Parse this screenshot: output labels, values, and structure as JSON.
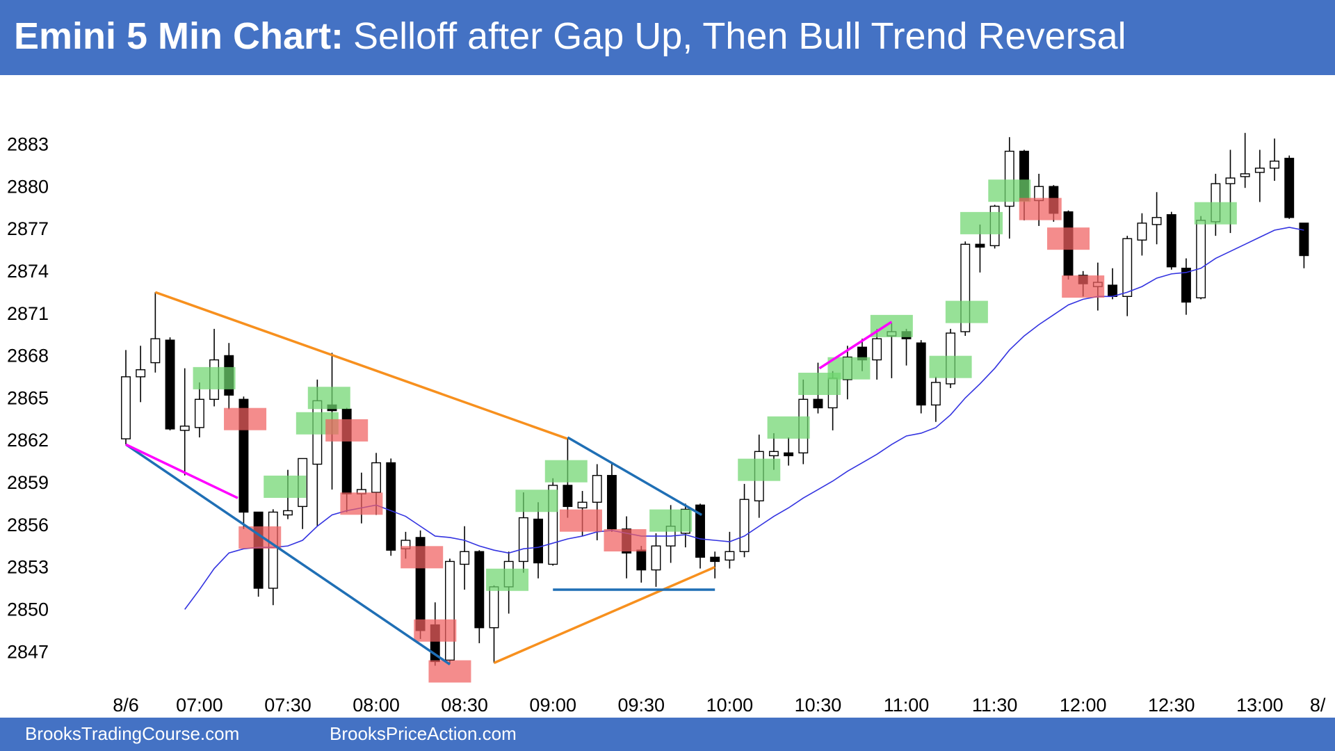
{
  "chart_data": {
    "type": "candlestick",
    "title_bold": "Emini 5 Min Chart:",
    "title": "Selloff after Gap Up, Then Bull Trend Reversal",
    "footer_left": "BrooksTradingCourse.com",
    "footer_right": "BrooksPriceAction.com",
    "categories": [
      "8/6",
      null,
      null,
      null,
      null,
      "07:00",
      null,
      null,
      null,
      null,
      null,
      "07:30",
      null,
      null,
      null,
      null,
      null,
      "08:00",
      null,
      null,
      null,
      null,
      null,
      "08:30",
      null,
      null,
      null,
      null,
      null,
      "09:00",
      null,
      null,
      null,
      null,
      null,
      "09:30",
      null,
      null,
      null,
      null,
      null,
      "10:00",
      null,
      null,
      null,
      null,
      null,
      "10:30",
      null,
      null,
      null,
      null,
      null,
      "11:00",
      null,
      null,
      null,
      null,
      null,
      "11:30",
      null,
      null,
      null,
      null,
      null,
      "12:00",
      null,
      null,
      null,
      null,
      null,
      "12:30",
      null,
      null,
      null,
      null,
      null,
      "13:00",
      null,
      null,
      null
    ],
    "next_day_label": "8/",
    "open": [
      2862.2,
      2866.6,
      2867.6,
      2869.2,
      2862.8,
      2863,
      2865,
      2868.1,
      2865,
      2857,
      2851.6,
      2856.8,
      2857.4,
      2860.4,
      2864.6,
      2864.3,
      2858.3,
      2858.4,
      2860.5,
      2854.4,
      2855.2,
      2849,
      2846.5,
      2853.3,
      2854.2,
      2848.8,
      2851.7,
      2853.5,
      2856.5,
      2853.3,
      2858.9,
      2857.3,
      2857.7,
      2859.6,
      2855.8,
      2854.3,
      2852.9,
      2854.6,
      2855.5,
      2857.5,
      2853.8,
      2853.6,
      2854.2,
      2857.8,
      2861,
      2861.2,
      2861.2,
      2865,
      2864.4,
      2866.4,
      2868.7,
      2867.8,
      2869.5,
      2869.8,
      2869,
      2864.6,
      2866.1,
      2869.8,
      2876,
      2875.9,
      2878.7,
      2882.6,
      2879.1,
      2880.1,
      2878.3,
      2873.8,
      2873,
      2873.1,
      2872.3,
      2876.3,
      2877.4,
      2878.1,
      2874.3,
      2872.2,
      2877.6,
      2880.3,
      2880.8,
      2881.1,
      2881.4,
      2882.1,
      2877.5
    ],
    "high": [
      2868.5,
      2868.8,
      2872.6,
      2869.4,
      2867.2,
      2866.2,
      2870,
      2869,
      2865.2,
      2857,
      2857.2,
      2860,
      2860.8,
      2866.4,
      2868.3,
      2864.4,
      2859.8,
      2861.2,
      2860.8,
      2855.6,
      2855.7,
      2850.6,
      2853.7,
      2856,
      2854.3,
      2851.8,
      2854.2,
      2858.4,
      2857.7,
      2859.4,
      2862.3,
      2858.5,
      2860.4,
      2860.5,
      2856.7,
      2854.6,
      2855.5,
      2857.5,
      2857.6,
      2857.6,
      2854.2,
      2855.6,
      2859,
      2862.5,
      2862.6,
      2862.3,
      2866.4,
      2867.6,
      2867,
      2868.8,
      2869.3,
      2870,
      2870.4,
      2870,
      2869.2,
      2866.6,
      2870,
      2876.2,
      2877.4,
      2878.8,
      2883.6,
      2882.7,
      2881,
      2880.2,
      2878.4,
      2874.1,
      2874.7,
      2874.3,
      2876.6,
      2878.2,
      2879.7,
      2878.3,
      2875,
      2878,
      2881,
      2882.7,
      2883.9,
      2882.7,
      2883.5,
      2882.3,
      2877.5
    ],
    "low": [
      2861.8,
      2864.8,
      2866.9,
      2862.8,
      2859.6,
      2862.3,
      2864.5,
      2864.3,
      2855.8,
      2851,
      2850.4,
      2856.5,
      2855.8,
      2856,
      2858.6,
      2857,
      2856.2,
      2856.8,
      2853.9,
      2853.7,
      2848,
      2846.1,
      2846.2,
      2851.5,
      2847.7,
      2846.3,
      2849.8,
      2852.7,
      2852.3,
      2853.2,
      2856.6,
      2855.3,
      2855,
      2855.6,
      2852.3,
      2852,
      2851.7,
      2853.4,
      2854.5,
      2853,
      2852.3,
      2853,
      2853.8,
      2856.6,
      2860,
      2860.3,
      2860.4,
      2864,
      2862.8,
      2865,
      2867,
      2866.4,
      2866.5,
      2867.4,
      2864,
      2863.4,
      2865.8,
      2869.5,
      2874,
      2875.7,
      2876.4,
      2877.7,
      2877.3,
      2877.6,
      2873.5,
      2872.3,
      2871.3,
      2872.1,
      2870.9,
      2875.2,
      2876,
      2874.2,
      2871,
      2872.1,
      2876.6,
      2876.8,
      2880,
      2879,
      2880.5,
      2877.8,
      2874.3
    ],
    "close": [
      2866.6,
      2867.1,
      2869.3,
      2862.9,
      2863.1,
      2865,
      2867.8,
      2865.3,
      2857,
      2851.6,
      2857,
      2857.1,
      2860.8,
      2864.9,
      2864.2,
      2858.3,
      2858.6,
      2860.5,
      2854.3,
      2855,
      2848.6,
      2846.4,
      2853.5,
      2854.2,
      2848.8,
      2851.7,
      2853.5,
      2856.6,
      2853.4,
      2858.9,
      2857.4,
      2857.7,
      2859.6,
      2855.8,
      2854.1,
      2852.9,
      2854.6,
      2856,
      2857.2,
      2853.8,
      2853.5,
      2854.2,
      2857.9,
      2861.3,
      2861.3,
      2861,
      2865,
      2864.4,
      2866.5,
      2868,
      2867.8,
      2869.3,
      2869.8,
      2869.3,
      2864.6,
      2866.2,
      2869.7,
      2876,
      2875.8,
      2878.7,
      2882.6,
      2879.1,
      2880.1,
      2878.2,
      2873.8,
      2873.2,
      2873.3,
      2872.3,
      2876.4,
      2877.5,
      2877.9,
      2874.4,
      2871.9,
      2877.7,
      2880.3,
      2880.7,
      2881,
      2881.4,
      2881.9,
      2877.9,
      2875.2
    ],
    "up_color": "#ffffff",
    "down_color": "#000000",
    "moving_average": {
      "color": "#3333e0",
      "values": [
        null,
        null,
        null,
        null,
        2850.1,
        2851.5,
        2853,
        2854.1,
        2854.4,
        2854.5,
        2854.5,
        2854.6,
        2855,
        2856,
        2856.8,
        2857.1,
        2857.3,
        2857.5,
        2857.1,
        2856.7,
        2856,
        2855.3,
        2855.2,
        2855,
        2854.6,
        2854.3,
        2854.1,
        2854.4,
        2854.5,
        2854.8,
        2855.1,
        2855.3,
        2855.6,
        2855.7,
        2855.5,
        2855.3,
        2855.3,
        2855.3,
        2855.4,
        2855.1,
        2855,
        2854.9,
        2855.3,
        2856,
        2856.7,
        2857.3,
        2858,
        2858.6,
        2859.2,
        2859.9,
        2860.5,
        2861.1,
        2861.8,
        2862.4,
        2862.6,
        2863,
        2863.9,
        2865.1,
        2866.1,
        2867.2,
        2868.5,
        2869.5,
        2870.3,
        2871,
        2871.7,
        2872.1,
        2872.3,
        2872.3,
        2872.6,
        2873,
        2873.6,
        2873.9,
        2874,
        2874.3,
        2875,
        2875.5,
        2876,
        2876.5,
        2877,
        2877.2,
        2877
      ]
    },
    "buy_signals": {
      "color": "#6fd66f",
      "points": [
        {
          "bar": 6,
          "price": 2866.5
        },
        {
          "bar": 10.8,
          "price": 2858.8
        },
        {
          "bar": 13.8,
          "price": 2865.1
        },
        {
          "bar": 13,
          "price": 2863.3
        },
        {
          "bar": 25.9,
          "price": 2852.2
        },
        {
          "bar": 27.9,
          "price": 2857.8
        },
        {
          "bar": 29.9,
          "price": 2859.9
        },
        {
          "bar": 37,
          "price": 2856.4
        },
        {
          "bar": 43,
          "price": 2860
        },
        {
          "bar": 45,
          "price": 2863
        },
        {
          "bar": 47.1,
          "price": 2866.1
        },
        {
          "bar": 49.1,
          "price": 2867.2
        },
        {
          "bar": 52,
          "price": 2870.2
        },
        {
          "bar": 56,
          "price": 2867.3
        },
        {
          "bar": 57.1,
          "price": 2871.2
        },
        {
          "bar": 58.1,
          "price": 2877.5
        },
        {
          "bar": 60,
          "price": 2879.8
        },
        {
          "bar": 74,
          "price": 2878.2
        }
      ]
    },
    "sell_signals": {
      "color": "#f06060",
      "points": [
        {
          "bar": 8.1,
          "price": 2863.6
        },
        {
          "bar": 9.1,
          "price": 2855.2
        },
        {
          "bar": 15,
          "price": 2862.8
        },
        {
          "bar": 16,
          "price": 2857.6
        },
        {
          "bar": 20.1,
          "price": 2853.8
        },
        {
          "bar": 21,
          "price": 2848.6
        },
        {
          "bar": 22,
          "price": 2845.7
        },
        {
          "bar": 30.9,
          "price": 2856.4
        },
        {
          "bar": 33.9,
          "price": 2855
        },
        {
          "bar": 62.1,
          "price": 2878.5
        },
        {
          "bar": 64,
          "price": 2876.4
        },
        {
          "bar": 65,
          "price": 2873
        }
      ]
    },
    "trend_lines": [
      {
        "color": "#f7901e",
        "from": [
          2,
          2872.6
        ],
        "to": [
          30,
          2862.2
        ]
      },
      {
        "color": "#f7901e",
        "from": [
          25,
          2846.3
        ],
        "to": [
          40,
          2853.1
        ]
      },
      {
        "color": "#1f6fb5",
        "from": [
          0,
          2861.8
        ],
        "to": [
          22,
          2846.2
        ]
      },
      {
        "color": "#1f6fb5",
        "from": [
          30,
          2862.3
        ],
        "to": [
          39.1,
          2856.8
        ]
      },
      {
        "color": "#1f6fb5",
        "from": [
          29,
          2851.5
        ],
        "to": [
          40,
          2851.5
        ]
      },
      {
        "color": "#ff00ff",
        "from": [
          0,
          2861.8
        ],
        "to": [
          7.6,
          2858
        ]
      },
      {
        "color": "#ff00ff",
        "from": [
          47.1,
          2867.2
        ],
        "to": [
          52,
          2870.5
        ]
      }
    ],
    "ylim": [
      2844,
      2887
    ],
    "yticks": [
      2847,
      2850,
      2853,
      2856,
      2859,
      2862,
      2865,
      2868,
      2871,
      2874,
      2877,
      2880,
      2883
    ],
    "header_color": "#4472c4"
  }
}
